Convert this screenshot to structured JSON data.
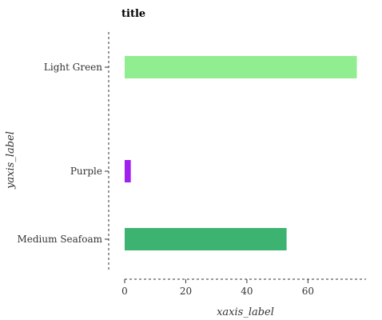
{
  "chart_data": {
    "type": "bar",
    "orientation": "horizontal",
    "title": "title",
    "xlabel": "xaxis_label",
    "ylabel": "yaxis_label",
    "categories": [
      "Medium Seafoam",
      "Purple",
      "Light Green"
    ],
    "values": [
      53,
      2,
      76
    ],
    "colors": [
      "#3cb371",
      "#a020f0",
      "#90ee90"
    ],
    "xlim": [
      0,
      79
    ],
    "xticks": [
      0,
      20,
      40,
      60
    ],
    "grid": false,
    "axis_style": "dashed"
  }
}
